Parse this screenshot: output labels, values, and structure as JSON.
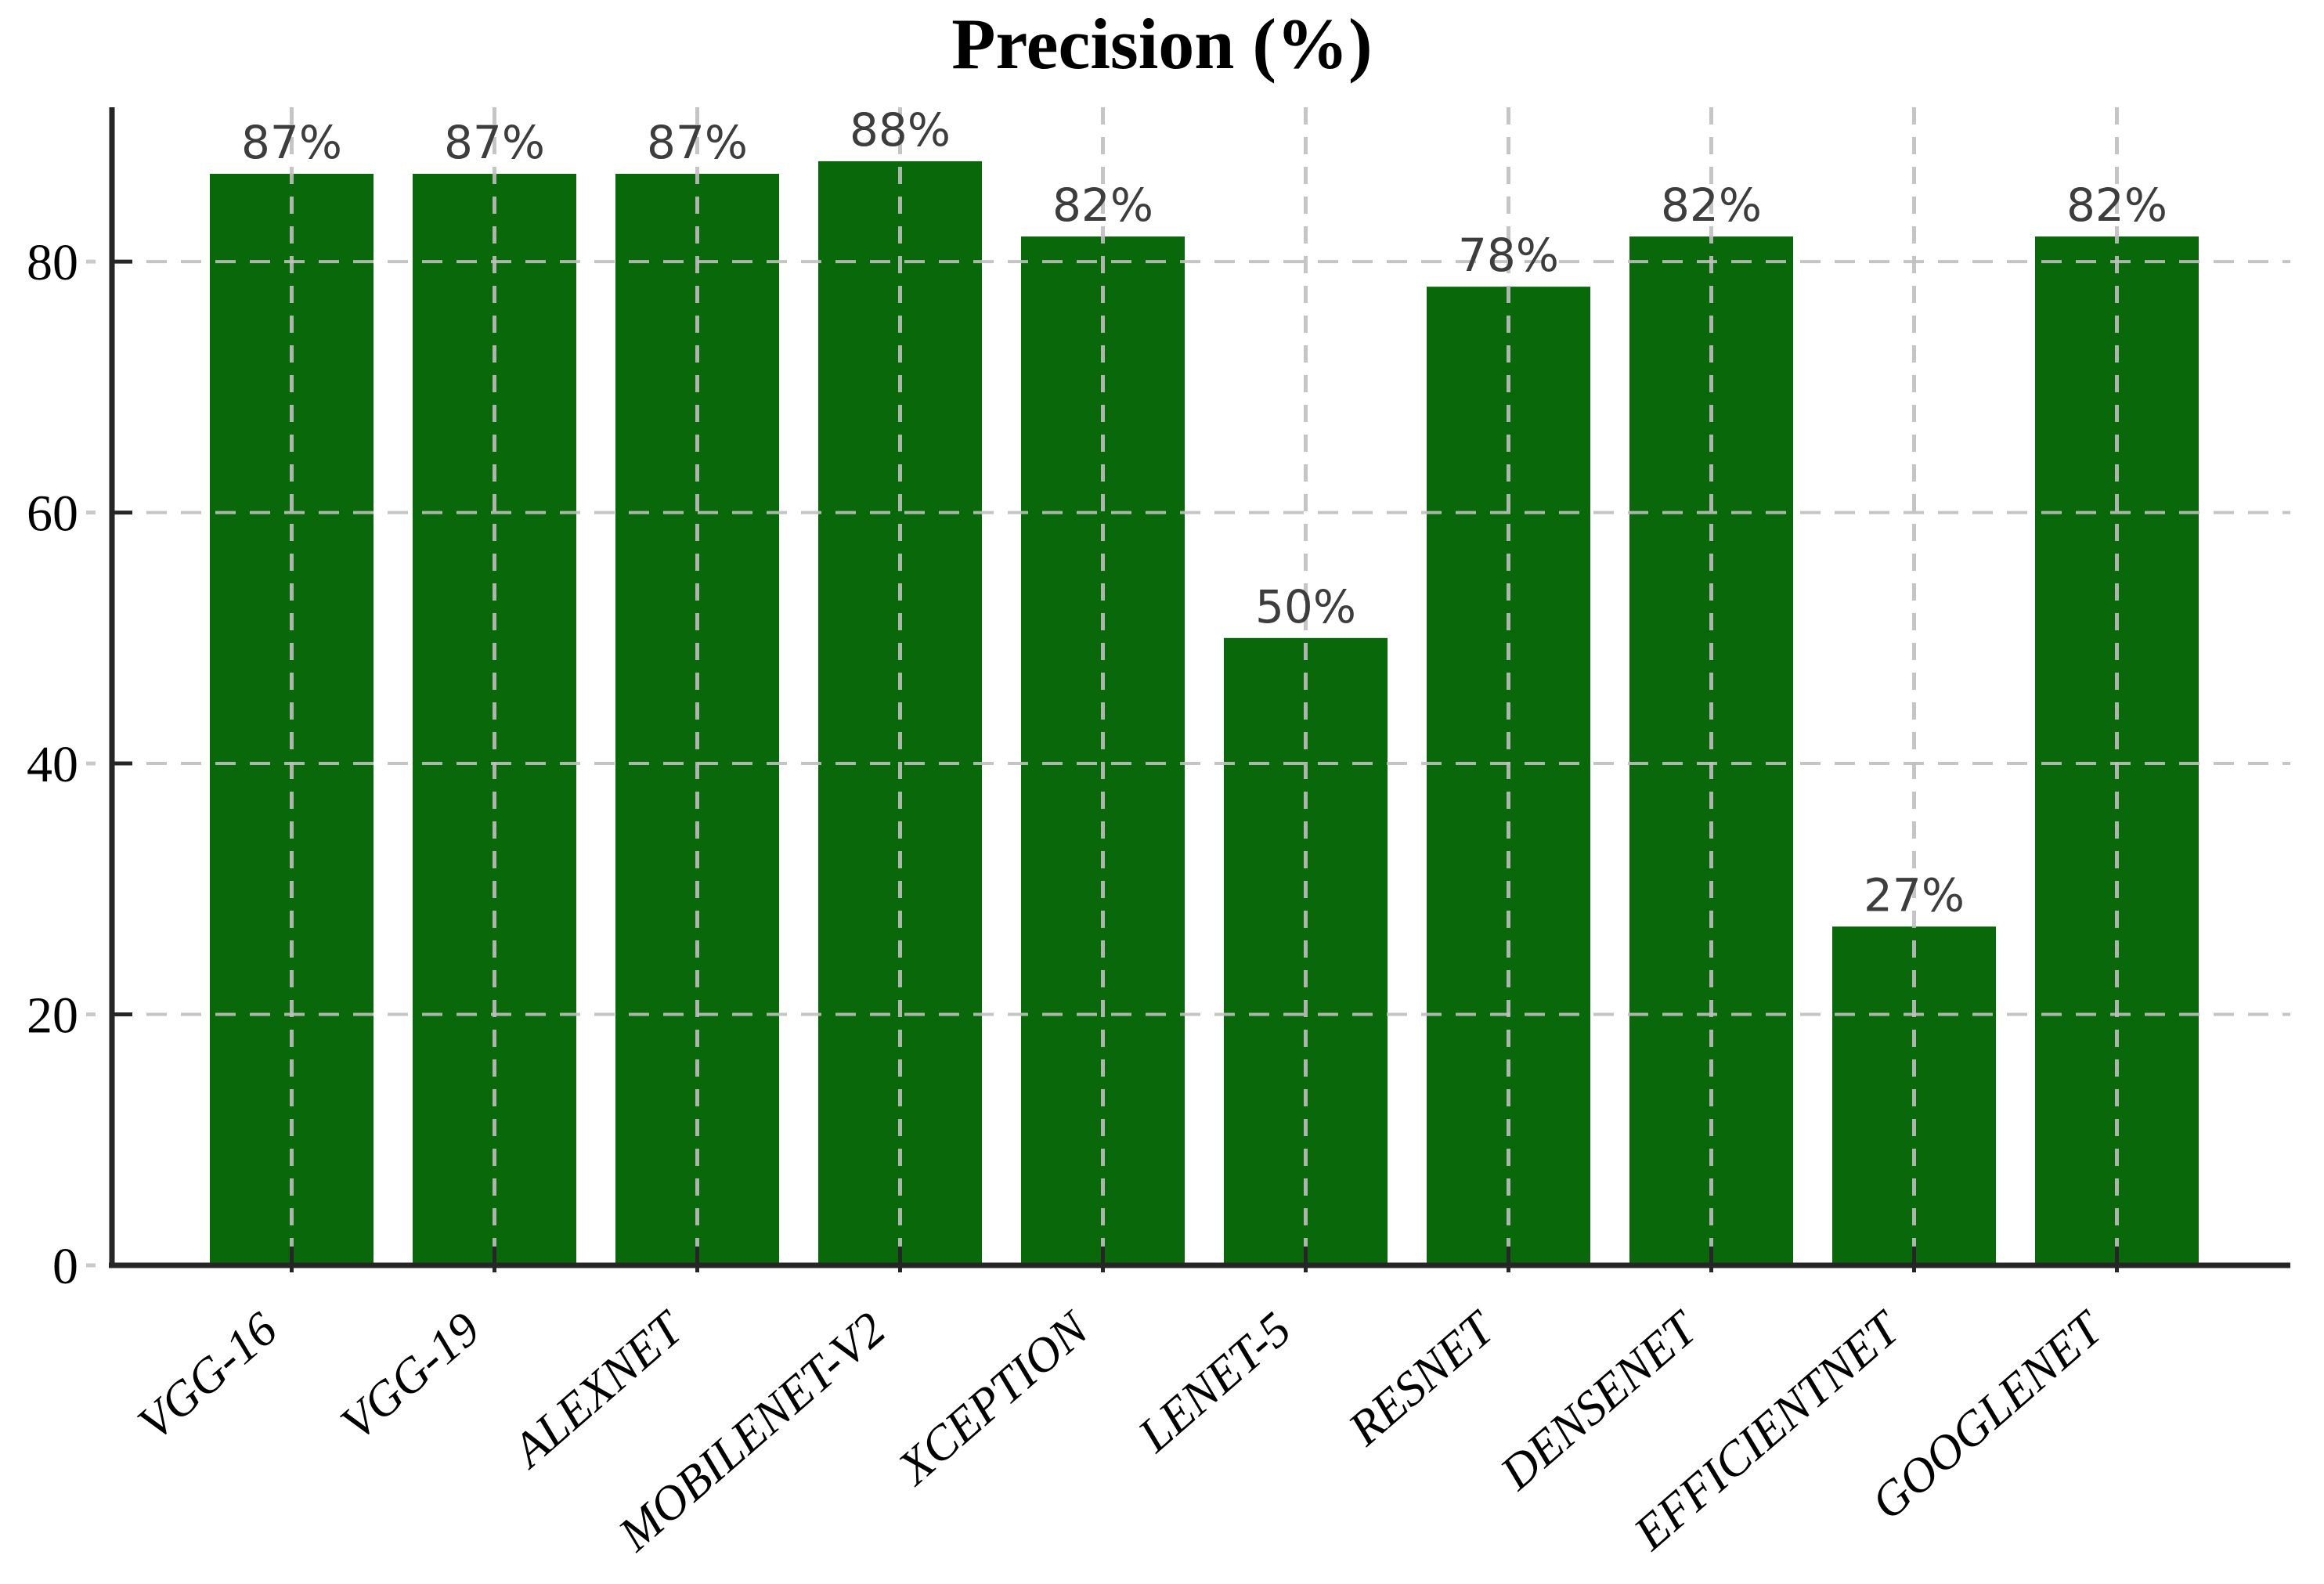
{
  "title": "Precision (%)",
  "chart_data": {
    "type": "bar",
    "title": "Precision (%)",
    "xlabel": "",
    "ylabel": "",
    "categories": [
      "VGG-16",
      "VGG-19",
      "ALEXNET",
      "MOBILENET-V2",
      "XCEPTION",
      "LENET-5",
      "RESNET",
      "DENSENET",
      "EFFICIENTNET",
      "GOOGLENET"
    ],
    "values": [
      87,
      87,
      87,
      88,
      82,
      50,
      78,
      82,
      27,
      82
    ],
    "value_labels": [
      "87%",
      "87%",
      "87%",
      "88%",
      "82%",
      "50%",
      "78%",
      "82%",
      "27%",
      "82%"
    ],
    "ylim": [
      0,
      92.3
    ],
    "yticks": [
      0,
      20,
      40,
      60,
      80
    ],
    "legend": "none",
    "grid": "dashed horizontal lines at y ticks and dashed vertical lines at bar centers, drawn over bars",
    "colors": {
      "bar": "#096809",
      "grid": "#bfbfbf",
      "axis": "#262626",
      "tick_label": "#000000",
      "value_label": "#3d3d3d",
      "background": "#ffffff"
    }
  }
}
